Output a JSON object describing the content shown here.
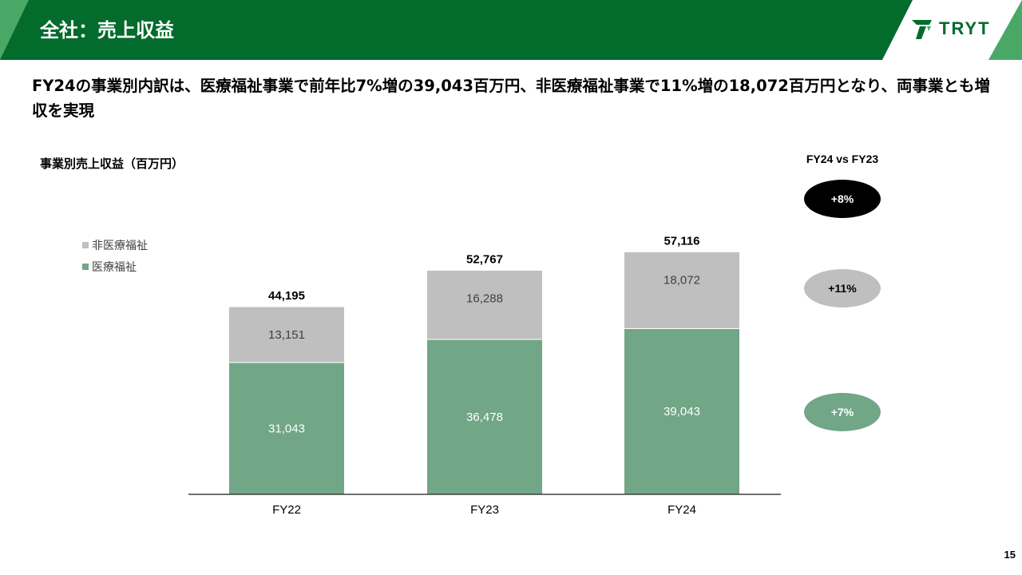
{
  "header": {
    "title": "全社：売上収益",
    "logo_text": "TRYT"
  },
  "headline": "FY24の事業別内訳は、医療福祉事業で前年比7%増の39,043百万円、非医療福祉事業で11%増の18,072百万円となり、両事業とも増収を実現",
  "chart_subtitle": "事業別売上収益（百万円）",
  "chart_data": {
    "type": "bar",
    "stacked": true,
    "categories": [
      "FY22",
      "FY23",
      "FY24"
    ],
    "series": [
      {
        "name": "医療福祉",
        "values": [
          31043,
          36478,
          39043
        ],
        "labels": [
          "31,043",
          "36,478",
          "39,043"
        ],
        "color": "#71a687"
      },
      {
        "name": "非医療福祉",
        "values": [
          13151,
          16288,
          18072
        ],
        "labels": [
          "13,151",
          "16,288",
          "18,072"
        ],
        "color": "#bfbfbf"
      }
    ],
    "totals": [
      44195,
      52767,
      57116
    ],
    "total_labels": [
      "44,195",
      "52,767",
      "57,116"
    ],
    "legend_position": "top-left",
    "grid": false
  },
  "comparison": {
    "title": "FY24 vs FY23",
    "total": {
      "label": "+8%",
      "color": "#000000"
    },
    "non_medical": {
      "label": "+11%",
      "color": "#bfbfbf"
    },
    "medical": {
      "label": "+7%",
      "color": "#71a687"
    }
  },
  "colors": {
    "header_bg": "#036b2c",
    "accent_green": "#4aa866",
    "axis": "#404040"
  },
  "page_number": "15"
}
